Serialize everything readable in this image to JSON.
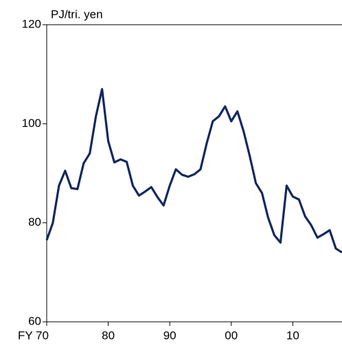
{
  "chart_data": {
    "type": "line",
    "y_axis_label": "PJ/tri. yen",
    "x": [
      1970,
      1971,
      1972,
      1973,
      1974,
      1975,
      1976,
      1977,
      1978,
      1979,
      1980,
      1981,
      1982,
      1983,
      1984,
      1985,
      1986,
      1987,
      1988,
      1989,
      1990,
      1991,
      1992,
      1993,
      1994,
      1995,
      1996,
      1997,
      1998,
      1999,
      2000,
      2001,
      2002,
      2003,
      2004,
      2005,
      2006,
      2007,
      2008,
      2009,
      2010,
      2011,
      2012,
      2013,
      2014,
      2015,
      2016,
      2017,
      2018
    ],
    "series": [
      {
        "color": "#14285f",
        "values": [
          76.5,
          80,
          87.5,
          90.5,
          87,
          86.8,
          92,
          94,
          101.5,
          107,
          96.5,
          92.2,
          92.8,
          92.3,
          87.5,
          85.5,
          86.3,
          87.2,
          85.2,
          83.5,
          87.5,
          90.8,
          89.7,
          89.3,
          89.8,
          90.8,
          96,
          100.5,
          101.5,
          103.5,
          100.5,
          102.5,
          98.5,
          93.5,
          88,
          86,
          81,
          77.5,
          76,
          87.5,
          85.3,
          84.7,
          81.3,
          79.5,
          77,
          77.7,
          78.5,
          74.8,
          74
        ]
      }
    ],
    "xlim": [
      1970,
      2018
    ],
    "xticks": [
      {
        "value": 1970,
        "label": "FY 70"
      },
      {
        "value": 1980,
        "label": "80"
      },
      {
        "value": 1990,
        "label": "90"
      },
      {
        "value": 2000,
        "label": "00"
      },
      {
        "value": 2010,
        "label": "10"
      }
    ],
    "ylim": [
      60,
      120
    ],
    "yticks": [
      60,
      80,
      100,
      120
    ]
  }
}
